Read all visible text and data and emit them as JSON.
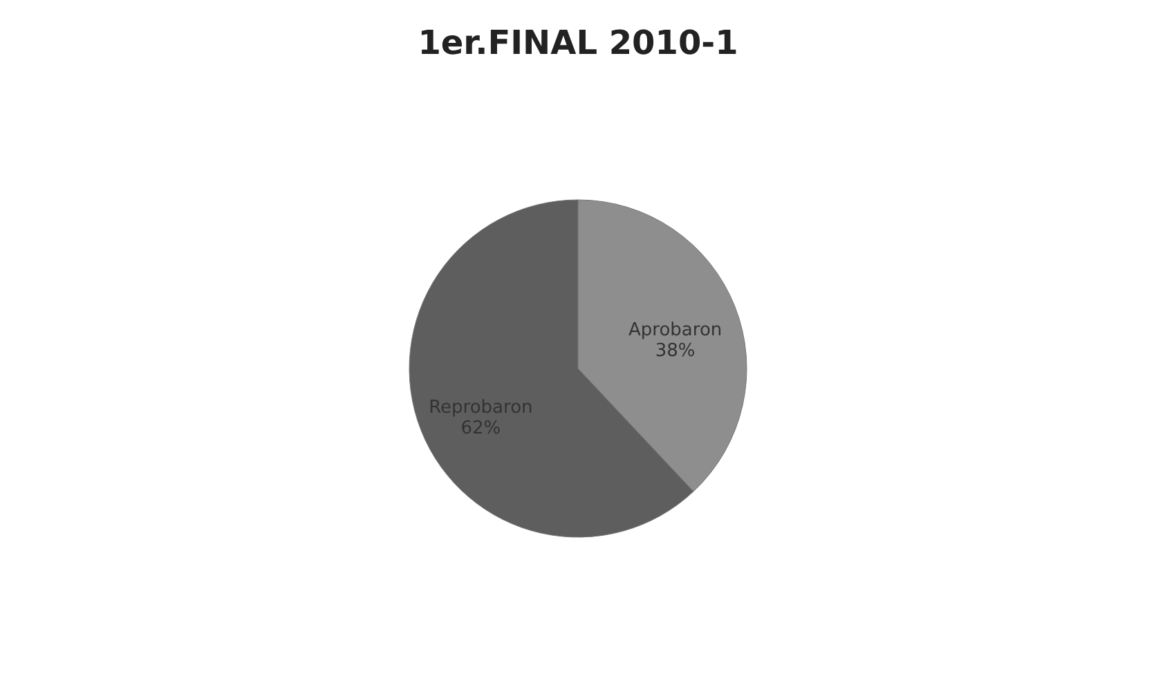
{
  "chart_data": {
    "type": "pie",
    "title": "1er.FINAL 2010-1",
    "categories": [
      "Aprobaron",
      "Reprobaron"
    ],
    "values": [
      38,
      62
    ],
    "colors": [
      "#8e8e8e",
      "#5e5e5e"
    ],
    "value_labels": [
      "38%",
      "62%"
    ],
    "legend": false
  }
}
